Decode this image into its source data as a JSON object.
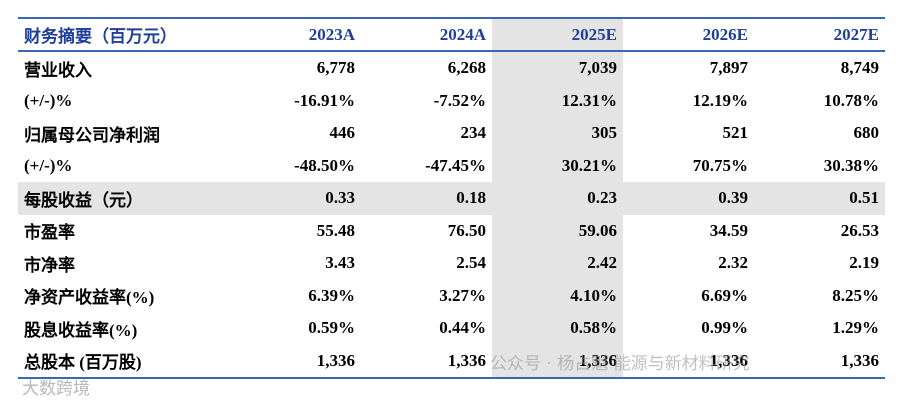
{
  "table": {
    "header": [
      "财务摘要（百万元）",
      "2023A",
      "2024A",
      "2025E",
      "2026E",
      "2027E"
    ],
    "rows": [
      [
        "营业收入",
        "6,778",
        "6,268",
        "7,039",
        "7,897",
        "8,749"
      ],
      [
        "(+/-)%",
        "-16.91%",
        "-7.52%",
        "12.31%",
        "12.19%",
        "10.78%"
      ],
      [
        "归属母公司净利润",
        "446",
        "234",
        "305",
        "521",
        "680"
      ],
      [
        "(+/-)%",
        "-48.50%",
        "-47.45%",
        "30.21%",
        "70.75%",
        "30.38%"
      ],
      [
        "每股收益（元）",
        "0.33",
        "0.18",
        "0.23",
        "0.39",
        "0.51"
      ],
      [
        "市盈率",
        "55.48",
        "76.50",
        "59.06",
        "34.59",
        "26.53"
      ],
      [
        "市净率",
        "3.43",
        "2.54",
        "2.42",
        "2.32",
        "2.19"
      ],
      [
        "净资产收益率(%)",
        "6.39%",
        "3.27%",
        "4.10%",
        "6.69%",
        "8.25%"
      ],
      [
        "股息收益率(%)",
        "0.59%",
        "0.44%",
        "0.58%",
        "0.99%",
        "1.29%"
      ],
      [
        "总股本 (百万股)",
        "1,336",
        "1,336",
        "1,336",
        "1,336",
        "1,336"
      ]
    ]
  },
  "watermarks": [
    "大数跨境",
    "公众号 · 杨占魁 能源与新材料研究"
  ]
}
